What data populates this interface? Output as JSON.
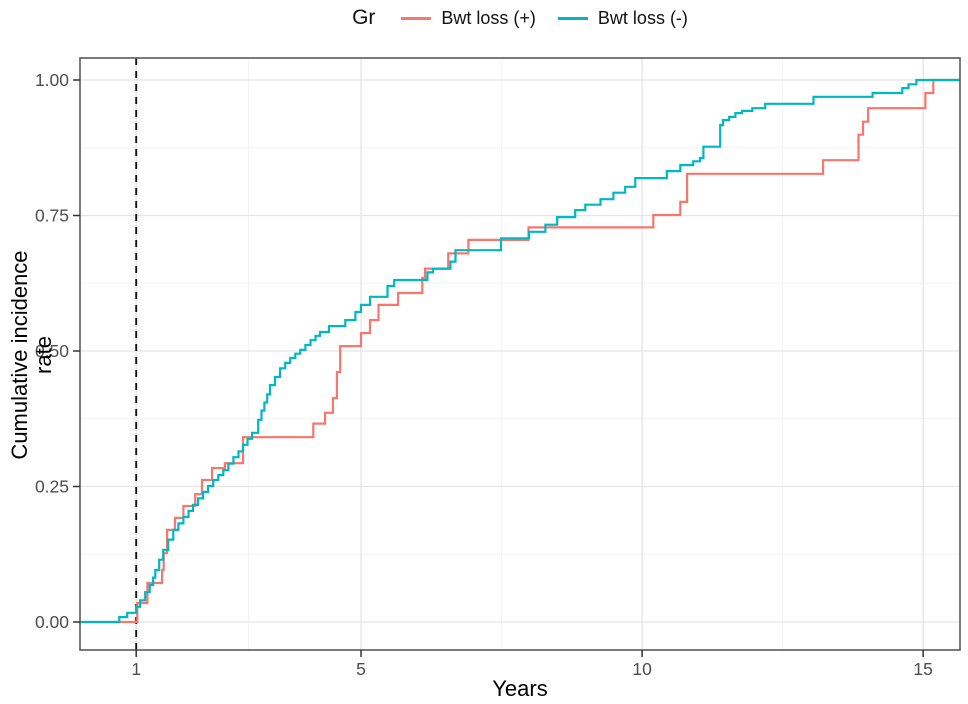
{
  "legend": {
    "title": "Gr",
    "entries": [
      {
        "label": "Bwt loss (+)",
        "color": "#F8766D"
      },
      {
        "label": "Bwt loss (-)",
        "color": "#00B8C0"
      }
    ]
  },
  "axes": {
    "x": {
      "title": "Years",
      "ticks": [
        1,
        5,
        10,
        15
      ],
      "minor_ticks": [
        3,
        7.5,
        12.5
      ],
      "range": [
        0,
        15.66
      ]
    },
    "y": {
      "title": "Cumulative incidence rate",
      "ticks": [
        "0.00",
        "0.25",
        "0.50",
        "0.75",
        "1.00"
      ],
      "tick_values": [
        0,
        0.25,
        0.5,
        0.75,
        1.0
      ],
      "minor_tick_values": [
        0.125,
        0.375,
        0.625,
        0.875
      ],
      "range": [
        -0.052,
        1.041
      ]
    }
  },
  "colors": {
    "series_plus": "#F8766D",
    "series_minus": "#00B8C0",
    "grid_major": "#E5E5E5",
    "grid_minor": "#F3F3F3",
    "panel_border": "#5A5A5A",
    "axis_text": "#4D4D4D",
    "vline": "#111111"
  },
  "chart_data": {
    "type": "line",
    "subtype": "step-cumulative-incidence",
    "title": "",
    "xlabel": "Years",
    "ylabel": "Cumulative incidence rate",
    "xlim": [
      0,
      15.66
    ],
    "ylim": [
      -0.052,
      1.041
    ],
    "grid": true,
    "legend_title": "Gr",
    "legend_position": "top",
    "vline": {
      "x": 1,
      "style": "dashed",
      "color": "#111111"
    },
    "series": [
      {
        "name": "Bwt loss (+)",
        "color": "#F8766D",
        "points": [
          [
            0,
            0
          ],
          [
            1.02,
            0.035
          ],
          [
            1.2,
            0.072
          ],
          [
            1.46,
            0.096
          ],
          [
            1.49,
            0.127
          ],
          [
            1.55,
            0.17
          ],
          [
            1.69,
            0.192
          ],
          [
            1.84,
            0.214
          ],
          [
            2.05,
            0.236
          ],
          [
            2.17,
            0.262
          ],
          [
            2.35,
            0.284
          ],
          [
            2.58,
            0.293
          ],
          [
            2.9,
            0.341
          ],
          [
            4.15,
            0.366
          ],
          [
            4.36,
            0.386
          ],
          [
            4.5,
            0.413
          ],
          [
            4.57,
            0.461
          ],
          [
            4.63,
            0.509
          ],
          [
            5.0,
            0.533
          ],
          [
            5.16,
            0.557
          ],
          [
            5.31,
            0.585
          ],
          [
            5.66,
            0.607
          ],
          [
            6.09,
            0.635
          ],
          [
            6.14,
            0.652
          ],
          [
            6.55,
            0.68
          ],
          [
            6.91,
            0.705
          ],
          [
            7.98,
            0.728
          ],
          [
            10.2,
            0.751
          ],
          [
            10.68,
            0.775
          ],
          [
            10.8,
            0.827
          ],
          [
            13.22,
            0.852
          ],
          [
            13.85,
            0.899
          ],
          [
            13.93,
            0.923
          ],
          [
            14.02,
            0.948
          ],
          [
            15.04,
            0.976
          ],
          [
            15.18,
            1.0
          ],
          [
            15.66,
            1.0
          ]
        ]
      },
      {
        "name": "Bwt loss (-)",
        "color": "#00B8C0",
        "points": [
          [
            0,
            0
          ],
          [
            0.7,
            0.009
          ],
          [
            0.84,
            0.017
          ],
          [
            1.0,
            0.028
          ],
          [
            1.07,
            0.04
          ],
          [
            1.16,
            0.055
          ],
          [
            1.24,
            0.068
          ],
          [
            1.3,
            0.082
          ],
          [
            1.34,
            0.096
          ],
          [
            1.41,
            0.115
          ],
          [
            1.48,
            0.133
          ],
          [
            1.57,
            0.152
          ],
          [
            1.66,
            0.17
          ],
          [
            1.75,
            0.182
          ],
          [
            1.84,
            0.194
          ],
          [
            1.93,
            0.205
          ],
          [
            2.01,
            0.216
          ],
          [
            2.1,
            0.228
          ],
          [
            2.19,
            0.24
          ],
          [
            2.28,
            0.251
          ],
          [
            2.37,
            0.262
          ],
          [
            2.46,
            0.271
          ],
          [
            2.55,
            0.28
          ],
          [
            2.64,
            0.292
          ],
          [
            2.73,
            0.304
          ],
          [
            2.82,
            0.315
          ],
          [
            2.9,
            0.327
          ],
          [
            2.98,
            0.338
          ],
          [
            3.06,
            0.349
          ],
          [
            3.17,
            0.373
          ],
          [
            3.23,
            0.39
          ],
          [
            3.28,
            0.405
          ],
          [
            3.33,
            0.42
          ],
          [
            3.38,
            0.437
          ],
          [
            3.47,
            0.452
          ],
          [
            3.56,
            0.468
          ],
          [
            3.65,
            0.478
          ],
          [
            3.74,
            0.487
          ],
          [
            3.83,
            0.495
          ],
          [
            3.92,
            0.502
          ],
          [
            4.01,
            0.511
          ],
          [
            4.1,
            0.52
          ],
          [
            4.19,
            0.528
          ],
          [
            4.27,
            0.535
          ],
          [
            4.43,
            0.546
          ],
          [
            4.72,
            0.557
          ],
          [
            4.9,
            0.572
          ],
          [
            5.0,
            0.585
          ],
          [
            5.16,
            0.6
          ],
          [
            5.47,
            0.62
          ],
          [
            5.59,
            0.631
          ],
          [
            6.18,
            0.645
          ],
          [
            6.28,
            0.652
          ],
          [
            6.59,
            0.665
          ],
          [
            6.68,
            0.686
          ],
          [
            7.49,
            0.708
          ],
          [
            7.99,
            0.72
          ],
          [
            8.28,
            0.733
          ],
          [
            8.49,
            0.747
          ],
          [
            8.81,
            0.76
          ],
          [
            8.99,
            0.77
          ],
          [
            9.26,
            0.78
          ],
          [
            9.49,
            0.792
          ],
          [
            9.7,
            0.803
          ],
          [
            9.88,
            0.819
          ],
          [
            10.44,
            0.832
          ],
          [
            10.68,
            0.843
          ],
          [
            10.91,
            0.85
          ],
          [
            11.03,
            0.856
          ],
          [
            11.09,
            0.877
          ],
          [
            11.39,
            0.917
          ],
          [
            11.44,
            0.926
          ],
          [
            11.55,
            0.932
          ],
          [
            11.66,
            0.939
          ],
          [
            11.78,
            0.943
          ],
          [
            11.96,
            0.948
          ],
          [
            12.19,
            0.956
          ],
          [
            13.05,
            0.969
          ],
          [
            14.1,
            0.976
          ],
          [
            14.63,
            0.985
          ],
          [
            14.74,
            0.992
          ],
          [
            14.88,
            1.0
          ],
          [
            15.66,
            1.0
          ]
        ]
      }
    ]
  }
}
